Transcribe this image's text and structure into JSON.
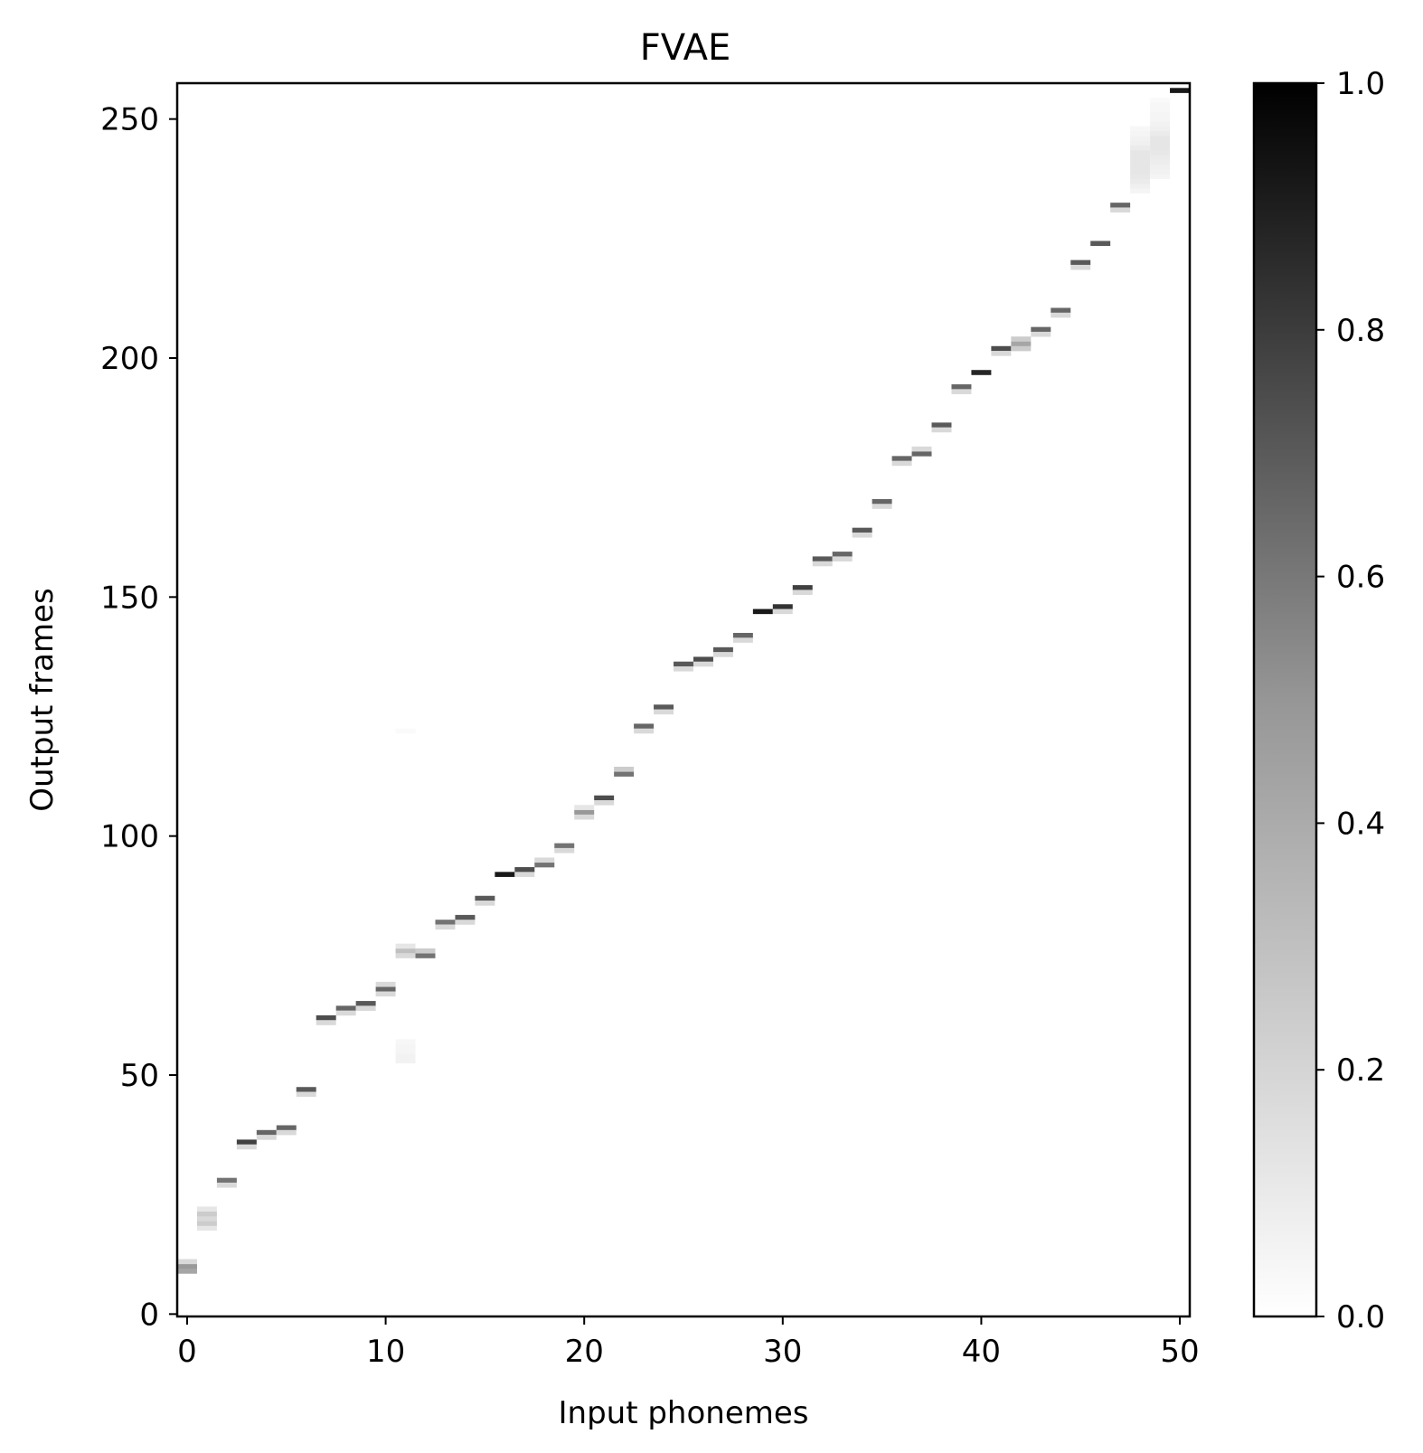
{
  "chart_data": {
    "type": "heatmap",
    "title": "FVAE",
    "xlabel": "Input phonemes",
    "ylabel": "Output frames",
    "xlim": [
      -0.5,
      50.5
    ],
    "ylim": [
      -0.5,
      257.5
    ],
    "xticks": [
      0,
      10,
      20,
      30,
      40,
      50
    ],
    "yticks": [
      0,
      50,
      100,
      150,
      200,
      250
    ],
    "colormap": "Greys",
    "colorbar": {
      "min": 0.0,
      "max": 1.0,
      "ticks": [
        "0.0",
        "0.2",
        "0.4",
        "0.6",
        "0.8",
        "1.0"
      ]
    },
    "grid": false,
    "cells": [
      [
        0,
        9,
        0.35
      ],
      [
        0,
        10,
        0.4
      ],
      [
        0,
        11,
        0.15
      ],
      [
        1,
        18,
        0.1
      ],
      [
        1,
        19,
        0.2
      ],
      [
        1,
        20,
        0.15
      ],
      [
        1,
        21,
        0.2
      ],
      [
        1,
        22,
        0.1
      ],
      [
        2,
        28,
        0.55
      ],
      [
        2,
        27,
        0.15
      ],
      [
        3,
        36,
        0.75
      ],
      [
        3,
        35,
        0.15
      ],
      [
        4,
        38,
        0.6
      ],
      [
        4,
        37,
        0.15
      ],
      [
        5,
        39,
        0.6
      ],
      [
        5,
        38,
        0.15
      ],
      [
        6,
        47,
        0.65
      ],
      [
        6,
        46,
        0.15
      ],
      [
        7,
        62,
        0.7
      ],
      [
        7,
        61,
        0.15
      ],
      [
        8,
        64,
        0.6
      ],
      [
        8,
        63,
        0.15
      ],
      [
        9,
        65,
        0.65
      ],
      [
        9,
        64,
        0.15
      ],
      [
        10,
        68,
        0.6
      ],
      [
        10,
        67,
        0.15
      ],
      [
        10,
        69,
        0.15
      ],
      [
        11,
        76,
        0.25
      ],
      [
        11,
        75,
        0.15
      ],
      [
        11,
        77,
        0.1
      ],
      [
        11,
        53,
        0.05
      ],
      [
        11,
        54,
        0.05
      ],
      [
        11,
        55,
        0.04
      ],
      [
        11,
        56,
        0.04
      ],
      [
        11,
        57,
        0.03
      ],
      [
        11,
        122,
        0.02
      ],
      [
        12,
        75,
        0.55
      ],
      [
        12,
        76,
        0.2
      ],
      [
        13,
        82,
        0.55
      ],
      [
        13,
        81,
        0.15
      ],
      [
        14,
        83,
        0.65
      ],
      [
        14,
        82,
        0.15
      ],
      [
        15,
        87,
        0.65
      ],
      [
        15,
        86,
        0.15
      ],
      [
        16,
        92,
        0.9
      ],
      [
        17,
        93,
        0.7
      ],
      [
        17,
        92,
        0.15
      ],
      [
        18,
        94,
        0.55
      ],
      [
        18,
        95,
        0.15
      ],
      [
        19,
        98,
        0.55
      ],
      [
        19,
        97,
        0.15
      ],
      [
        20,
        105,
        0.4
      ],
      [
        20,
        104,
        0.15
      ],
      [
        20,
        106,
        0.1
      ],
      [
        21,
        108,
        0.7
      ],
      [
        21,
        107,
        0.15
      ],
      [
        22,
        113,
        0.55
      ],
      [
        22,
        114,
        0.2
      ],
      [
        23,
        123,
        0.6
      ],
      [
        23,
        122,
        0.15
      ],
      [
        24,
        127,
        0.65
      ],
      [
        24,
        126,
        0.15
      ],
      [
        25,
        136,
        0.65
      ],
      [
        25,
        135,
        0.15
      ],
      [
        26,
        137,
        0.7
      ],
      [
        26,
        136,
        0.15
      ],
      [
        27,
        139,
        0.65
      ],
      [
        27,
        138,
        0.15
      ],
      [
        28,
        142,
        0.6
      ],
      [
        28,
        141,
        0.15
      ],
      [
        29,
        147,
        0.9
      ],
      [
        30,
        148,
        0.8
      ],
      [
        30,
        147,
        0.15
      ],
      [
        31,
        152,
        0.75
      ],
      [
        31,
        151,
        0.15
      ],
      [
        32,
        158,
        0.65
      ],
      [
        32,
        157,
        0.15
      ],
      [
        33,
        159,
        0.6
      ],
      [
        33,
        158,
        0.15
      ],
      [
        34,
        164,
        0.65
      ],
      [
        34,
        163,
        0.15
      ],
      [
        35,
        170,
        0.6
      ],
      [
        35,
        169,
        0.15
      ],
      [
        36,
        179,
        0.6
      ],
      [
        36,
        178,
        0.15
      ],
      [
        37,
        180,
        0.6
      ],
      [
        37,
        181,
        0.15
      ],
      [
        38,
        186,
        0.65
      ],
      [
        38,
        185,
        0.15
      ],
      [
        39,
        194,
        0.6
      ],
      [
        39,
        193,
        0.15
      ],
      [
        40,
        197,
        0.85
      ],
      [
        41,
        202,
        0.7
      ],
      [
        41,
        201,
        0.15
      ],
      [
        42,
        203,
        0.35
      ],
      [
        42,
        202,
        0.2
      ],
      [
        42,
        204,
        0.2
      ],
      [
        43,
        206,
        0.6
      ],
      [
        43,
        205,
        0.15
      ],
      [
        44,
        210,
        0.6
      ],
      [
        44,
        209,
        0.15
      ],
      [
        45,
        220,
        0.65
      ],
      [
        45,
        219,
        0.15
      ],
      [
        46,
        224,
        0.65
      ],
      [
        47,
        232,
        0.6
      ],
      [
        47,
        231,
        0.15
      ],
      [
        48,
        235,
        0.04
      ],
      [
        48,
        236,
        0.06
      ],
      [
        48,
        237,
        0.08
      ],
      [
        48,
        238,
        0.09
      ],
      [
        48,
        239,
        0.1
      ],
      [
        48,
        240,
        0.1
      ],
      [
        48,
        241,
        0.1
      ],
      [
        48,
        242,
        0.1
      ],
      [
        48,
        243,
        0.1
      ],
      [
        48,
        244,
        0.08
      ],
      [
        48,
        245,
        0.06
      ],
      [
        48,
        246,
        0.05
      ],
      [
        48,
        247,
        0.04
      ],
      [
        48,
        248,
        0.03
      ],
      [
        49,
        238,
        0.04
      ],
      [
        49,
        239,
        0.05
      ],
      [
        49,
        240,
        0.06
      ],
      [
        49,
        241,
        0.07
      ],
      [
        49,
        242,
        0.08
      ],
      [
        49,
        243,
        0.09
      ],
      [
        49,
        244,
        0.1
      ],
      [
        49,
        245,
        0.1
      ],
      [
        49,
        246,
        0.1
      ],
      [
        49,
        247,
        0.08
      ],
      [
        49,
        248,
        0.06
      ],
      [
        49,
        249,
        0.05
      ],
      [
        49,
        250,
        0.04
      ],
      [
        49,
        251,
        0.04
      ],
      [
        49,
        252,
        0.03
      ],
      [
        49,
        253,
        0.03
      ],
      [
        49,
        254,
        0.02
      ],
      [
        50,
        256,
        0.9
      ]
    ]
  }
}
